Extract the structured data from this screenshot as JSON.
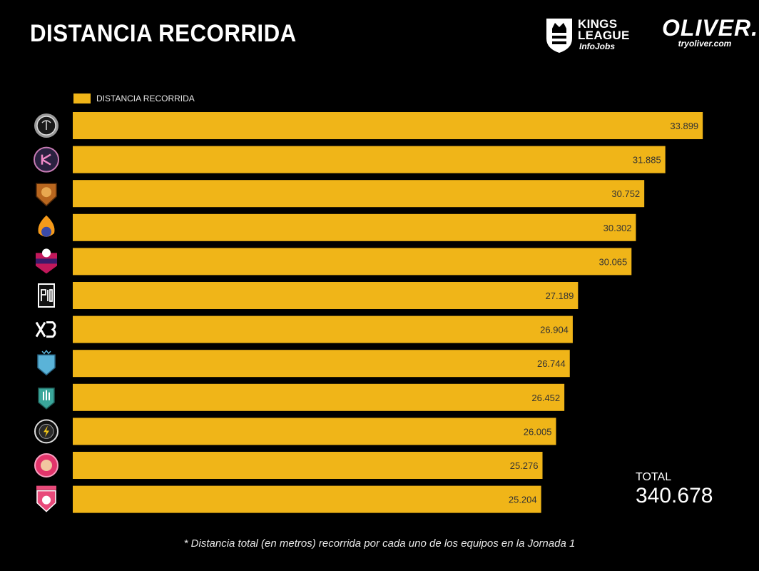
{
  "title": "DISTANCIA RECORRIDA",
  "brands": {
    "kings_line1": "KINGS",
    "kings_line2": "LEAGUE",
    "kings_line3": "InfoJobs",
    "oliver": "OLIVER.",
    "oliver_url": "tryoliver.com"
  },
  "colors": {
    "bar": "#F0B518",
    "background": "#000000",
    "text": "#FFFFFF",
    "value_text": "#333333"
  },
  "chart_data": {
    "type": "bar",
    "orientation": "horizontal",
    "legend": "DISTANCIA RECORRIDA",
    "legend_position": "top-left",
    "categories": [
      "team-1",
      "team-2",
      "team-3",
      "team-4",
      "team-5",
      "team-6",
      "team-7",
      "team-8",
      "team-9",
      "team-10",
      "team-11",
      "team-12"
    ],
    "category_icons": [
      "tree-logo-icon",
      "k-logo-icon",
      "lion-logo-icon",
      "flame-logo-icon",
      "ball-shield-logo-icon",
      "pio-logo-icon",
      "xb-logo-icon",
      "1k-logo-icon",
      "hand-logo-icon",
      "bolt-logo-icon",
      "round-pink-logo-icon",
      "pink-shield-logo-icon"
    ],
    "values": [
      33899,
      31885,
      30752,
      30302,
      30065,
      27189,
      26904,
      26744,
      26452,
      26005,
      25276,
      25204
    ],
    "value_labels": [
      "33.899",
      "31.885",
      "30.752",
      "30.302",
      "30.065",
      "27.189",
      "26.904",
      "26.744",
      "26.452",
      "26.005",
      "25.276",
      "25.204"
    ],
    "xlim": [
      0,
      34200
    ],
    "grid": false
  },
  "total": {
    "label": "TOTAL",
    "value": "340.678"
  },
  "footnote": "* Distancia total (en metros) recorrida por cada uno de los equipos en la Jornada 1"
}
